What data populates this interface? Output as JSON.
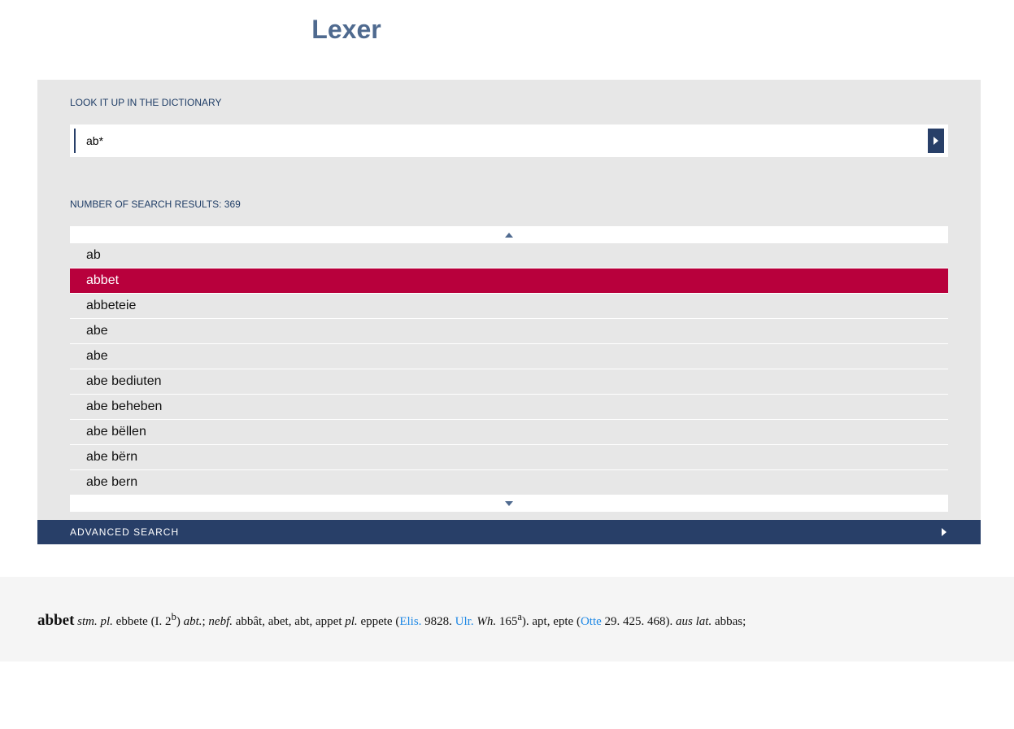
{
  "header": {
    "title": "Lexer"
  },
  "search": {
    "label": "Look it up in the dictionary",
    "value": "ab*"
  },
  "results": {
    "label": "Number of search results: 369",
    "items": [
      "ab",
      "abbet",
      "abbeteie",
      "abe",
      "abe",
      "abe bediuten",
      "abe beheben",
      "abe bëllen",
      "abe bërn",
      "abe bern"
    ],
    "selected_index": 1
  },
  "advanced": {
    "label": "Advanced Search"
  },
  "colors": {
    "accent": "#b8003c",
    "primary": "#283f68"
  },
  "entry": {
    "headword": "abbet",
    "t1": "stm. pl.",
    "t2": " ebbete (I. 2",
    "s1": "b",
    "t3": ") ",
    "t4": "abt.",
    "t5": "; ",
    "t6": "nebf.",
    "t7": " abbât, abet, abt, appet ",
    "t8": "pl.",
    "t9": " eppete (",
    "l1": "Elis.",
    "t10": " 9828. ",
    "l2": "Ulr.",
    "t11": " ",
    "t12": "Wh.",
    "t13": " 165",
    "s2": "a",
    "t14": "). apt, epte (",
    "l3": "Otte",
    "t15": " 29. 425. 468). ",
    "t16": "aus lat.",
    "t17": " abbas;"
  }
}
